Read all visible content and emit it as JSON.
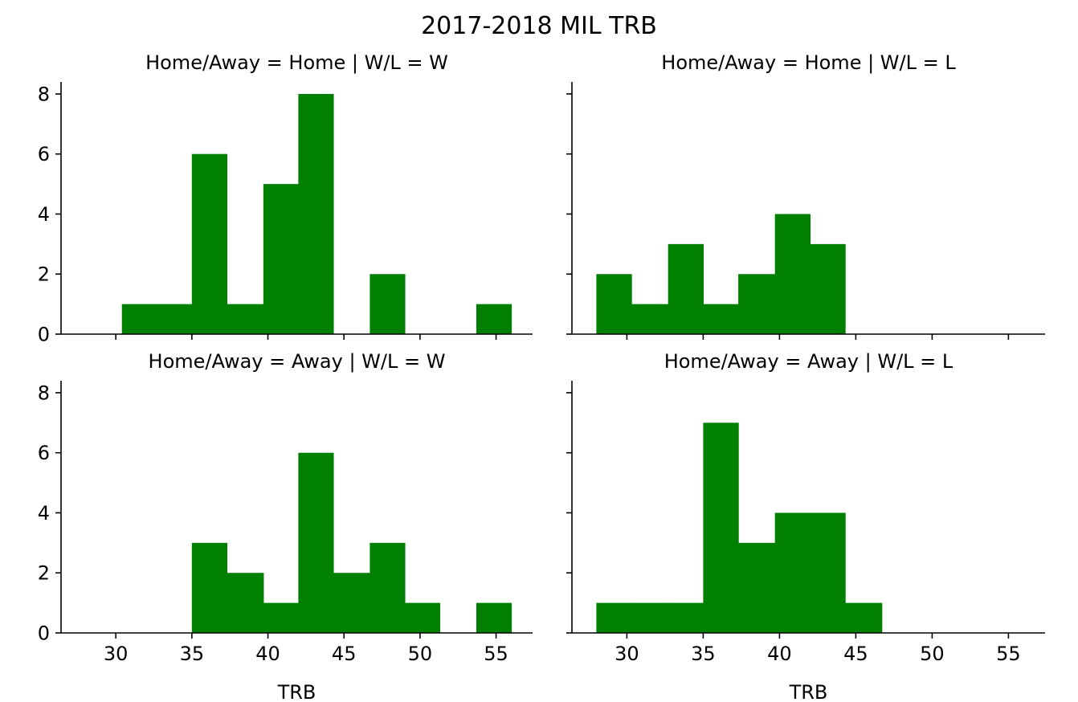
{
  "chart_data": {
    "type": "histogram-facet-grid",
    "title": "2017-2018 MIL TRB",
    "xlabel": "TRB",
    "bar_color": "#008000",
    "xlim": [
      26.4,
      57.4
    ],
    "ylim": [
      0,
      8.4
    ],
    "xticks": [
      30,
      35,
      40,
      45,
      50,
      55
    ],
    "yticks": [
      0,
      2,
      4,
      6,
      8
    ],
    "panels": [
      {
        "title": "Home/Away = Home | W/L = W",
        "bins": [
          {
            "x0": 30.4,
            "x1": 32.7,
            "count": 1
          },
          {
            "x0": 32.7,
            "x1": 35.0,
            "count": 1
          },
          {
            "x0": 35.0,
            "x1": 37.3,
            "count": 6
          },
          {
            "x0": 37.3,
            "x1": 39.7,
            "count": 1
          },
          {
            "x0": 39.7,
            "x1": 42.0,
            "count": 5
          },
          {
            "x0": 42.0,
            "x1": 44.3,
            "count": 8
          },
          {
            "x0": 44.3,
            "x1": 46.7,
            "count": 0
          },
          {
            "x0": 46.7,
            "x1": 49.0,
            "count": 2
          },
          {
            "x0": 49.0,
            "x1": 51.3,
            "count": 0
          },
          {
            "x0": 51.3,
            "x1": 53.7,
            "count": 0
          },
          {
            "x0": 53.7,
            "x1": 56.0,
            "count": 1
          }
        ]
      },
      {
        "title": "Home/Away = Home | W/L = L",
        "bins": [
          {
            "x0": 28.0,
            "x1": 30.3,
            "count": 2
          },
          {
            "x0": 30.3,
            "x1": 32.7,
            "count": 1
          },
          {
            "x0": 32.7,
            "x1": 35.0,
            "count": 3
          },
          {
            "x0": 35.0,
            "x1": 37.3,
            "count": 1
          },
          {
            "x0": 37.3,
            "x1": 39.7,
            "count": 2
          },
          {
            "x0": 39.7,
            "x1": 42.0,
            "count": 4
          },
          {
            "x0": 42.0,
            "x1": 44.3,
            "count": 3
          }
        ]
      },
      {
        "title": "Home/Away = Away | W/L = W",
        "bins": [
          {
            "x0": 35.0,
            "x1": 37.3,
            "count": 3
          },
          {
            "x0": 37.3,
            "x1": 39.7,
            "count": 2
          },
          {
            "x0": 39.7,
            "x1": 42.0,
            "count": 1
          },
          {
            "x0": 42.0,
            "x1": 44.3,
            "count": 6
          },
          {
            "x0": 44.3,
            "x1": 46.7,
            "count": 2
          },
          {
            "x0": 46.7,
            "x1": 49.0,
            "count": 3
          },
          {
            "x0": 49.0,
            "x1": 51.3,
            "count": 1
          },
          {
            "x0": 51.3,
            "x1": 53.7,
            "count": 0
          },
          {
            "x0": 53.7,
            "x1": 56.0,
            "count": 1
          }
        ]
      },
      {
        "title": "Home/Away = Away | W/L = L",
        "bins": [
          {
            "x0": 28.0,
            "x1": 30.3,
            "count": 1
          },
          {
            "x0": 30.3,
            "x1": 32.7,
            "count": 1
          },
          {
            "x0": 32.7,
            "x1": 35.0,
            "count": 1
          },
          {
            "x0": 35.0,
            "x1": 37.3,
            "count": 7
          },
          {
            "x0": 37.3,
            "x1": 39.7,
            "count": 3
          },
          {
            "x0": 39.7,
            "x1": 42.0,
            "count": 4
          },
          {
            "x0": 42.0,
            "x1": 44.3,
            "count": 4
          },
          {
            "x0": 44.3,
            "x1": 46.7,
            "count": 1
          }
        ]
      }
    ]
  }
}
